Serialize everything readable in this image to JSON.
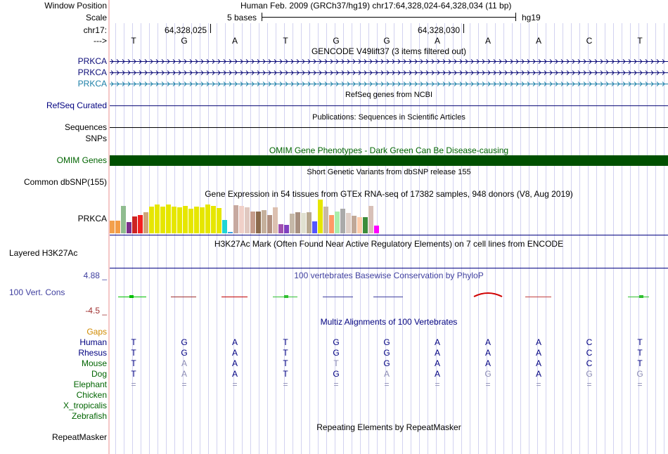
{
  "header": {
    "window_position_label": "Window Position",
    "window_position_value": "Human Feb. 2009 (GRCh37/hg19)   chr17:64,328,024-64,328,034 (11 bp)",
    "scale_label": "Scale",
    "scale_text": "5 bases",
    "scale_assembly": "hg19",
    "chrom_label": "chr17:",
    "coord1": "64,328,025",
    "coord2": "64,328,030",
    "arrow_label": "--->",
    "bases": [
      "T",
      "G",
      "A",
      "T",
      "G",
      "G",
      "A",
      "A",
      "A",
      "C",
      "T"
    ]
  },
  "tracks": {
    "gencode": {
      "title": "GENCODE V49lift37 (3 items filtered out)",
      "rows": [
        "PRKCA",
        "PRKCA",
        "PRKCA"
      ]
    },
    "refseq": {
      "title": "RefSeq genes from NCBI",
      "label": "RefSeq Curated"
    },
    "publications": {
      "title": "Publications: Sequences in Scientific Articles",
      "label": "Sequences"
    },
    "snps_label": "SNPs",
    "omim": {
      "title": "OMIM Gene Phenotypes - Dark Green Can Be Disease-causing",
      "label": "OMIM Genes"
    },
    "dbsnp": {
      "title": "Short Genetic Variants from dbSNP release 155",
      "label": "Common dbSNP(155)"
    },
    "gtex": {
      "title": "Gene Expression in 54 tissues from GTEx RNA-seq of 17382 samples, 948 donors (V8, Aug 2019)",
      "label": "PRKCA"
    },
    "h3k27ac": {
      "title": "H3K27Ac Mark (Often Found Near Active Regulatory Elements) on 7 cell lines from ENCODE",
      "label": "Layered H3K27Ac"
    },
    "phylop": {
      "title": "100 vertebrates Basewise Conservation by PhyloP",
      "label": "100 Vert. Cons",
      "max": "4.88 _",
      "min": "-4.5 _"
    },
    "multiz": {
      "title": "Multiz Alignments of 100 Vertebrates",
      "gaps_label": "Gaps",
      "species": [
        {
          "name": "Human",
          "seq": [
            "T",
            "G",
            "A",
            "T",
            "G",
            "G",
            "A",
            "A",
            "A",
            "C",
            "T"
          ]
        },
        {
          "name": "Rhesus",
          "seq": [
            "T",
            "G",
            "A",
            "T",
            "G",
            "G",
            "A",
            "A",
            "A",
            "C",
            "T"
          ]
        },
        {
          "name": "Mouse",
          "seq": [
            "T",
            "A",
            "A",
            "T",
            "T",
            "G",
            "A",
            "A",
            "A",
            "C",
            "T"
          ]
        },
        {
          "name": "Dog",
          "seq": [
            "T",
            "A",
            "A",
            "T",
            "G",
            "A",
            "A",
            "G",
            "A",
            "G",
            "G"
          ]
        },
        {
          "name": "Elephant",
          "seq": [
            "=",
            "=",
            "=",
            "=",
            "=",
            "=",
            "=",
            "=",
            "=",
            "=",
            "="
          ]
        },
        {
          "name": "Chicken",
          "seq": []
        },
        {
          "name": "X_tropicalis",
          "seq": []
        },
        {
          "name": "Zebrafish",
          "seq": []
        }
      ]
    },
    "repeatmasker": {
      "title": "Repeating Elements by RepeatMasker",
      "label": "RepeatMasker"
    }
  },
  "colors": {
    "navy": "#000080",
    "gencode_blue": "#0c0c78",
    "gencode_light": "#1b7fa8",
    "omim_green": "#006400",
    "dark_green": "#005000",
    "phylop_blue": "#3f3f9f",
    "phylop_red": "#9f2f2f",
    "gaps_orange": "#d08a00",
    "mismatch_gray": "#8c8cb4"
  }
}
